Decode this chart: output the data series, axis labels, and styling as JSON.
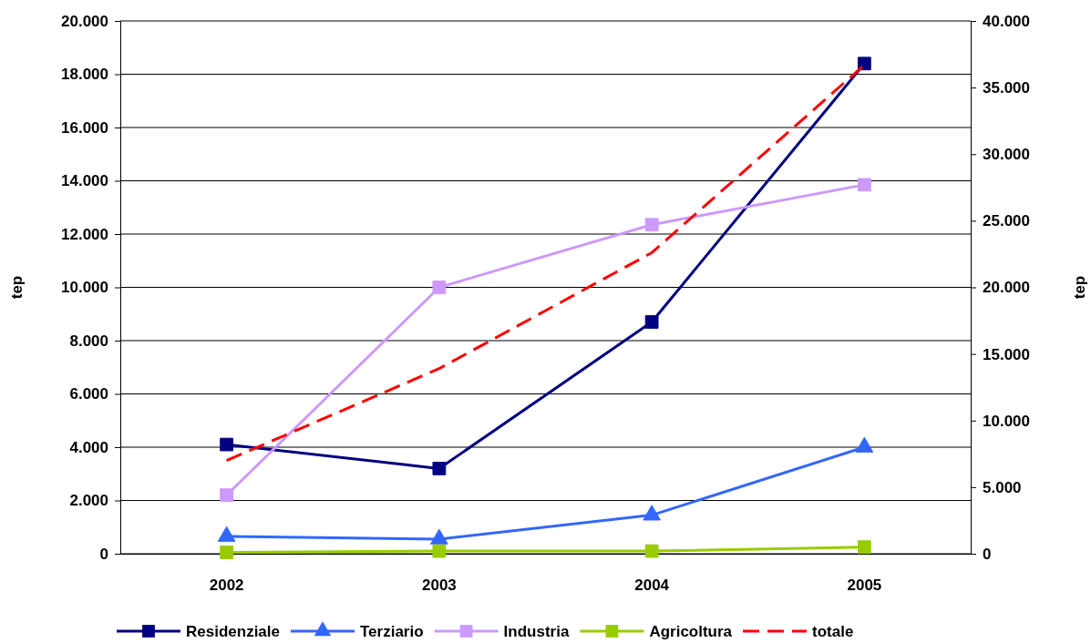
{
  "chart_data": {
    "type": "line",
    "categories": [
      "2002",
      "2003",
      "2004",
      "2005"
    ],
    "ylabel": "tep",
    "y2label": "tep",
    "ylim": [
      0,
      20000
    ],
    "yticks": [
      {
        "value": 0,
        "label": "0"
      },
      {
        "value": 2000,
        "label": "2.000"
      },
      {
        "value": 4000,
        "label": "4.000"
      },
      {
        "value": 6000,
        "label": "6.000"
      },
      {
        "value": 8000,
        "label": "8.000"
      },
      {
        "value": 10000,
        "label": "10.000"
      },
      {
        "value": 12000,
        "label": "12.000"
      },
      {
        "value": 14000,
        "label": "14.000"
      },
      {
        "value": 16000,
        "label": "16.000"
      },
      {
        "value": 18000,
        "label": "18.000"
      },
      {
        "value": 20000,
        "label": "20.000"
      }
    ],
    "y2lim": [
      0,
      40000
    ],
    "y2ticks": [
      {
        "value": 0,
        "label": "0"
      },
      {
        "value": 5000,
        "label": "5.000"
      },
      {
        "value": 10000,
        "label": "10.000"
      },
      {
        "value": 15000,
        "label": "15.000"
      },
      {
        "value": 20000,
        "label": "20.000"
      },
      {
        "value": 25000,
        "label": "25.000"
      },
      {
        "value": 30000,
        "label": "30.000"
      },
      {
        "value": 35000,
        "label": "35.000"
      },
      {
        "value": 40000,
        "label": "40.000"
      }
    ],
    "grid": "y",
    "legend": "bottom",
    "series": [
      {
        "name": "Residenziale",
        "color": "#000080",
        "marker": "square",
        "line_style": "solid",
        "values": [
          4100,
          3200,
          8700,
          18400
        ]
      },
      {
        "name": "Terziario",
        "color": "#3366ff",
        "marker": "triangle",
        "line_style": "solid",
        "values": [
          650,
          550,
          1450,
          4000
        ]
      },
      {
        "name": "Industria",
        "color": "#cc99ff",
        "marker": "square",
        "line_style": "solid",
        "values": [
          2200,
          10000,
          12350,
          13850
        ]
      },
      {
        "name": "Agricoltura",
        "color": "#99cc00",
        "marker": "square",
        "line_style": "solid",
        "values": [
          50,
          100,
          100,
          250
        ]
      },
      {
        "name": "totale",
        "color": "#ff0000",
        "marker": "none",
        "line_style": "dashed",
        "axis": "y2",
        "values": [
          7000,
          13900,
          22600,
          36700
        ]
      }
    ]
  }
}
